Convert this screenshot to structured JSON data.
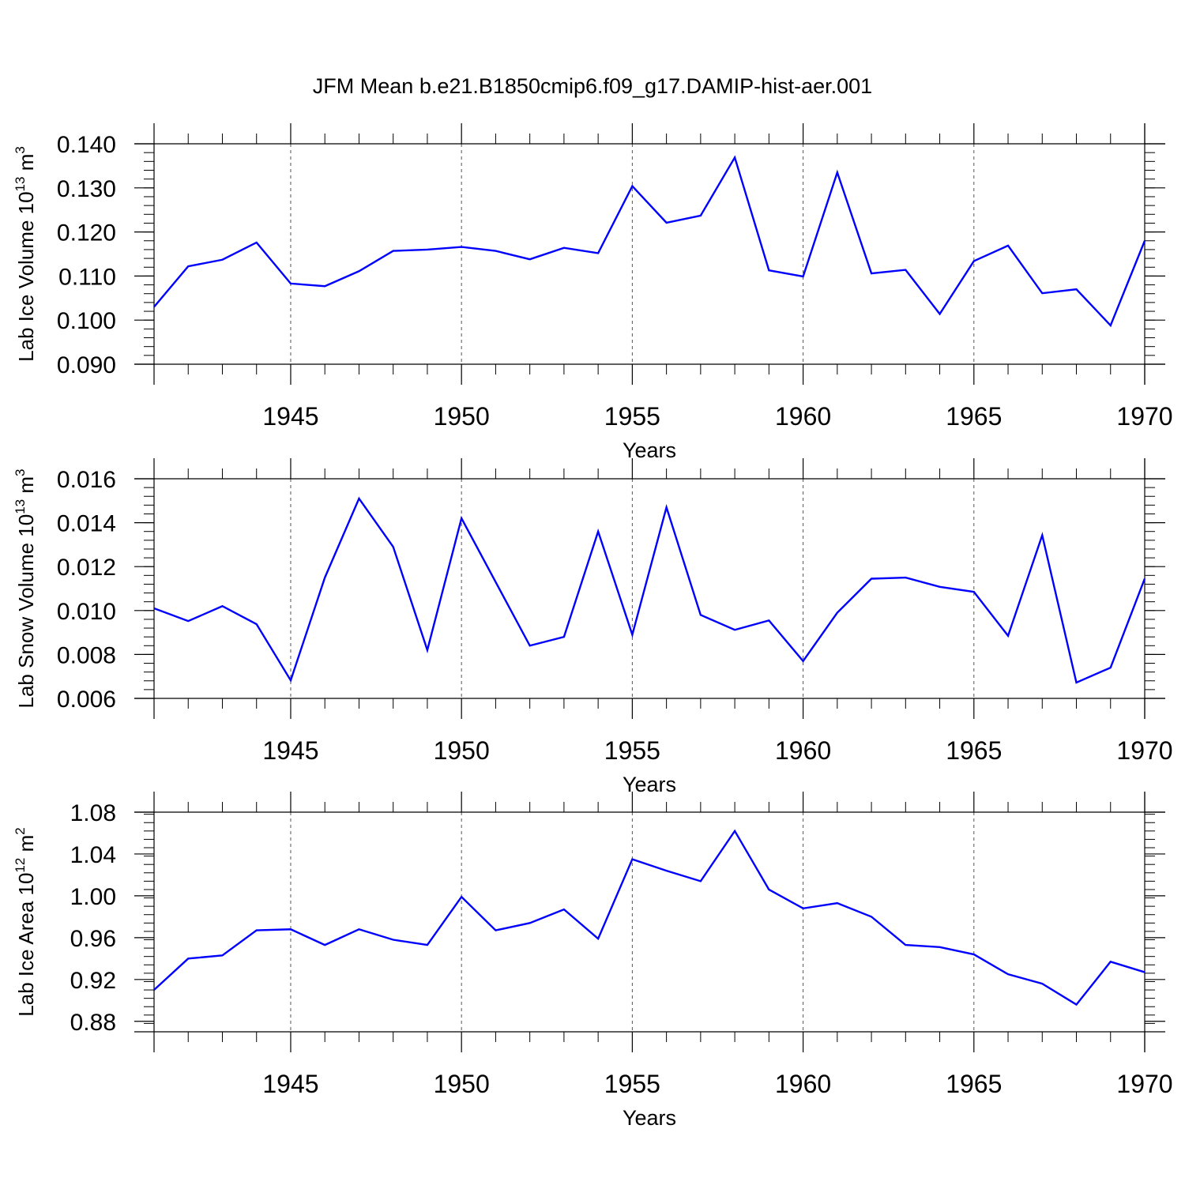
{
  "title": "JFM Mean b.e21.B1850cmip6.f09_g17.DAMIP-hist-aer.001",
  "colors": {
    "line": "#0000ff",
    "axis": "#000000",
    "grid": "#555555"
  },
  "chart_data": [
    {
      "type": "line",
      "ylabel": "Lab Ice Volume 10",
      "ylabel_exp": "13",
      "ylabel_unit": " m",
      "ylabel_unit_exp": "3",
      "xlabel": "Years",
      "xlim": [
        1941,
        1970
      ],
      "ylim": [
        0.09,
        0.14
      ],
      "yticks": [
        0.09,
        0.1,
        0.11,
        0.12,
        0.13,
        0.14
      ],
      "ytick_labels": [
        "0.090",
        "0.100",
        "0.110",
        "0.120",
        "0.130",
        "0.140"
      ],
      "y_minor_step": 0.002,
      "xticks": [
        1945,
        1950,
        1955,
        1960,
        1965,
        1970
      ],
      "xtick_labels": [
        "1945",
        "1950",
        "1955",
        "1960",
        "1965",
        "1970"
      ],
      "x": [
        1941,
        1942,
        1943,
        1944,
        1945,
        1946,
        1947,
        1948,
        1949,
        1950,
        1951,
        1952,
        1953,
        1954,
        1955,
        1956,
        1957,
        1958,
        1959,
        1960,
        1961,
        1962,
        1963,
        1964,
        1965,
        1966,
        1967,
        1968,
        1969,
        1970
      ],
      "values": [
        0.103,
        0.1122,
        0.1137,
        0.1176,
        0.1083,
        0.1077,
        0.1111,
        0.1157,
        0.116,
        0.1166,
        0.1157,
        0.1138,
        0.1164,
        0.1152,
        0.1304,
        0.1221,
        0.1237,
        0.1369,
        0.1113,
        0.1099,
        0.1335,
        0.1106,
        0.1114,
        0.1014,
        0.1134,
        0.1169,
        0.1061,
        0.107,
        0.0988,
        0.118
      ]
    },
    {
      "type": "line",
      "ylabel": "Lab Snow Volume 10",
      "ylabel_exp": "13",
      "ylabel_unit": " m",
      "ylabel_unit_exp": "3",
      "xlabel": "Years",
      "xlim": [
        1941,
        1970
      ],
      "ylim": [
        0.006,
        0.016
      ],
      "yticks": [
        0.006,
        0.008,
        0.01,
        0.012,
        0.014,
        0.016
      ],
      "ytick_labels": [
        "0.006",
        "0.008",
        "0.010",
        "0.012",
        "0.014",
        "0.016"
      ],
      "y_minor_step": 0.0004,
      "xticks": [
        1945,
        1950,
        1955,
        1960,
        1965,
        1970
      ],
      "xtick_labels": [
        "1945",
        "1950",
        "1955",
        "1960",
        "1965",
        "1970"
      ],
      "x": [
        1941,
        1942,
        1943,
        1944,
        1945,
        1946,
        1947,
        1948,
        1949,
        1950,
        1951,
        1952,
        1953,
        1954,
        1955,
        1956,
        1957,
        1958,
        1959,
        1960,
        1961,
        1962,
        1963,
        1964,
        1965,
        1966,
        1967,
        1968,
        1969,
        1970
      ],
      "values": [
        0.0101,
        0.00952,
        0.0102,
        0.00938,
        0.00682,
        0.0115,
        0.0151,
        0.0129,
        0.0082,
        0.0142,
        0.0113,
        0.0084,
        0.0088,
        0.0136,
        0.0089,
        0.0147,
        0.0098,
        0.00912,
        0.00955,
        0.0077,
        0.0099,
        0.01145,
        0.0115,
        0.01108,
        0.01085,
        0.00885,
        0.01343,
        0.00672,
        0.0074,
        0.01145
      ]
    },
    {
      "type": "line",
      "ylabel": "Lab Ice Area 10",
      "ylabel_exp": "12",
      "ylabel_unit": " m",
      "ylabel_unit_exp": "2",
      "xlabel": "Years",
      "xlim": [
        1941,
        1970
      ],
      "ylim": [
        0.87,
        1.08
      ],
      "yticks": [
        0.88,
        0.92,
        0.96,
        1.0,
        1.04,
        1.08
      ],
      "ytick_labels": [
        "0.88",
        "0.92",
        "0.96",
        "1.00",
        "1.04",
        "1.08"
      ],
      "y_minor_step": 0.008,
      "xticks": [
        1945,
        1950,
        1955,
        1960,
        1965,
        1970
      ],
      "xtick_labels": [
        "1945",
        "1950",
        "1955",
        "1960",
        "1965",
        "1970"
      ],
      "x": [
        1941,
        1942,
        1943,
        1944,
        1945,
        1946,
        1947,
        1948,
        1949,
        1950,
        1951,
        1952,
        1953,
        1954,
        1955,
        1956,
        1957,
        1958,
        1959,
        1960,
        1961,
        1962,
        1963,
        1964,
        1965,
        1966,
        1967,
        1968,
        1969,
        1970
      ],
      "values": [
        0.91,
        0.94,
        0.943,
        0.967,
        0.968,
        0.953,
        0.968,
        0.958,
        0.953,
        0.999,
        0.967,
        0.974,
        0.987,
        0.959,
        1.035,
        1.024,
        1.014,
        1.062,
        1.006,
        0.988,
        0.993,
        0.98,
        0.953,
        0.951,
        0.944,
        0.925,
        0.916,
        0.896,
        0.937,
        0.927
      ]
    }
  ]
}
